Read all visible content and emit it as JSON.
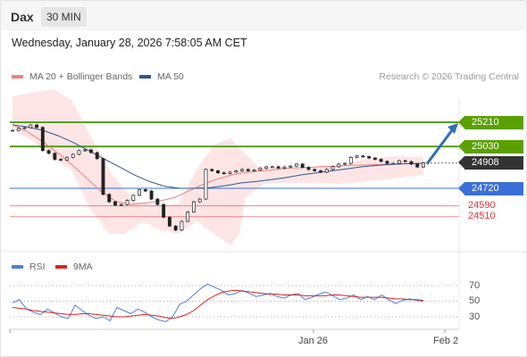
{
  "header": {
    "symbol": "Dax",
    "timeframe": "30 MIN"
  },
  "timestamp": "Wednesday, January 28, 2026 7:58:05 AM CET",
  "credit": "Research © 2026 Trading Central",
  "legend": {
    "ma20": {
      "label": "MA 20 + Bollinger Bands",
      "color": "#f08080"
    },
    "ma50": {
      "label": "MA 50",
      "color": "#2b5797"
    },
    "rsi": {
      "label": "RSI",
      "color": "#4f7fdb"
    },
    "ma9": {
      "label": "9MA",
      "color": "#e02020"
    }
  },
  "levels": {
    "r2": {
      "value": "25210",
      "color": "#5aa000"
    },
    "r1": {
      "value": "25030",
      "color": "#5aa000"
    },
    "last": {
      "value": "24908",
      "color": "#333333"
    },
    "s1": {
      "value": "24720",
      "color": "#3a6fd8"
    },
    "s2": {
      "value": "24590",
      "color": "#e03030"
    },
    "s3": {
      "value": "24510",
      "color": "#e03030"
    }
  },
  "rsi_ticks": [
    "70",
    "50",
    "30"
  ],
  "x_ticks": [
    "Jan 26",
    "Feb 2"
  ],
  "chart_data": [
    {
      "type": "candlestick",
      "title": "Dax",
      "timeframe": "30 MIN",
      "ylim": [
        24250,
        25450
      ],
      "horizontal_levels": [
        25210,
        25030,
        24908,
        24720,
        24590,
        24510
      ],
      "forecast_target": 25210,
      "series": [
        {
          "name": "close",
          "values": [
            25150,
            25165,
            25170,
            25190,
            25172,
            25000,
            24980,
            24935,
            24930,
            24950,
            24972,
            25000,
            25005,
            24985,
            24940,
            24675,
            24620,
            24595,
            24600,
            24630,
            24668,
            24710,
            24700,
            24640,
            24600,
            24505,
            24440,
            24410,
            24475,
            24545,
            24620,
            24640,
            24860,
            24850,
            24835,
            24830,
            24840,
            24850,
            24860,
            24850,
            24855,
            24870,
            24880,
            24880,
            24870,
            24878,
            24885,
            24900,
            24875,
            24860,
            24850,
            24840,
            24860,
            24880,
            24900,
            24905,
            24950,
            24960,
            24955,
            24945,
            24935,
            24920,
            24905,
            24905,
            24925,
            24918,
            24900,
            24878,
            24908
          ]
        },
        {
          "name": "MA 20",
          "values": [
            25195,
            25140,
            25070,
            24990,
            24900,
            24800,
            24700,
            24625,
            24600,
            24610,
            24625,
            24650,
            24700,
            24750,
            24790,
            24820,
            24840,
            24850,
            24860,
            24870,
            24875,
            24880,
            24885,
            24890,
            24893,
            24896,
            24900,
            24903,
            24905
          ]
        },
        {
          "name": "MA 50",
          "values": [
            25190,
            25175,
            25150,
            25110,
            25060,
            25000,
            24940,
            24880,
            24820,
            24770,
            24735,
            24720,
            24720,
            24725,
            24740,
            24760,
            24770,
            24785,
            24800,
            24820,
            24835,
            24850,
            24865,
            24880,
            24890,
            24898,
            24903,
            24906
          ]
        }
      ]
    },
    {
      "type": "line",
      "title": "RSI",
      "ylim": [
        20,
        80
      ],
      "yticks": [
        70,
        50,
        30
      ],
      "series": [
        {
          "name": "RSI",
          "values": [
            48,
            52,
            40,
            36,
            33,
            40,
            35,
            30,
            28,
            45,
            38,
            32,
            28,
            30,
            25,
            42,
            38,
            34,
            40,
            36,
            30,
            26,
            24,
            30,
            46,
            50,
            58,
            66,
            72,
            68,
            64,
            58,
            60,
            64,
            60,
            56,
            58,
            60,
            56,
            54,
            58,
            60,
            52,
            55,
            59,
            62,
            57,
            52,
            54,
            58,
            52,
            56,
            52,
            58,
            52,
            47,
            51,
            53,
            51,
            50
          ]
        },
        {
          "name": "9MA",
          "values": [
            42,
            41,
            40,
            38,
            37,
            36,
            35,
            34,
            33,
            33,
            34,
            34,
            33,
            32,
            31,
            30,
            30,
            31,
            32,
            33,
            32,
            31,
            29,
            28,
            30,
            33,
            38,
            45,
            52,
            57,
            61,
            63,
            64,
            63,
            62,
            61,
            60,
            59,
            59,
            58,
            58,
            58,
            57,
            57,
            57,
            57,
            58,
            58,
            57,
            56,
            55,
            55,
            55,
            55,
            54,
            53,
            53,
            52,
            52,
            51
          ]
        }
      ]
    }
  ]
}
